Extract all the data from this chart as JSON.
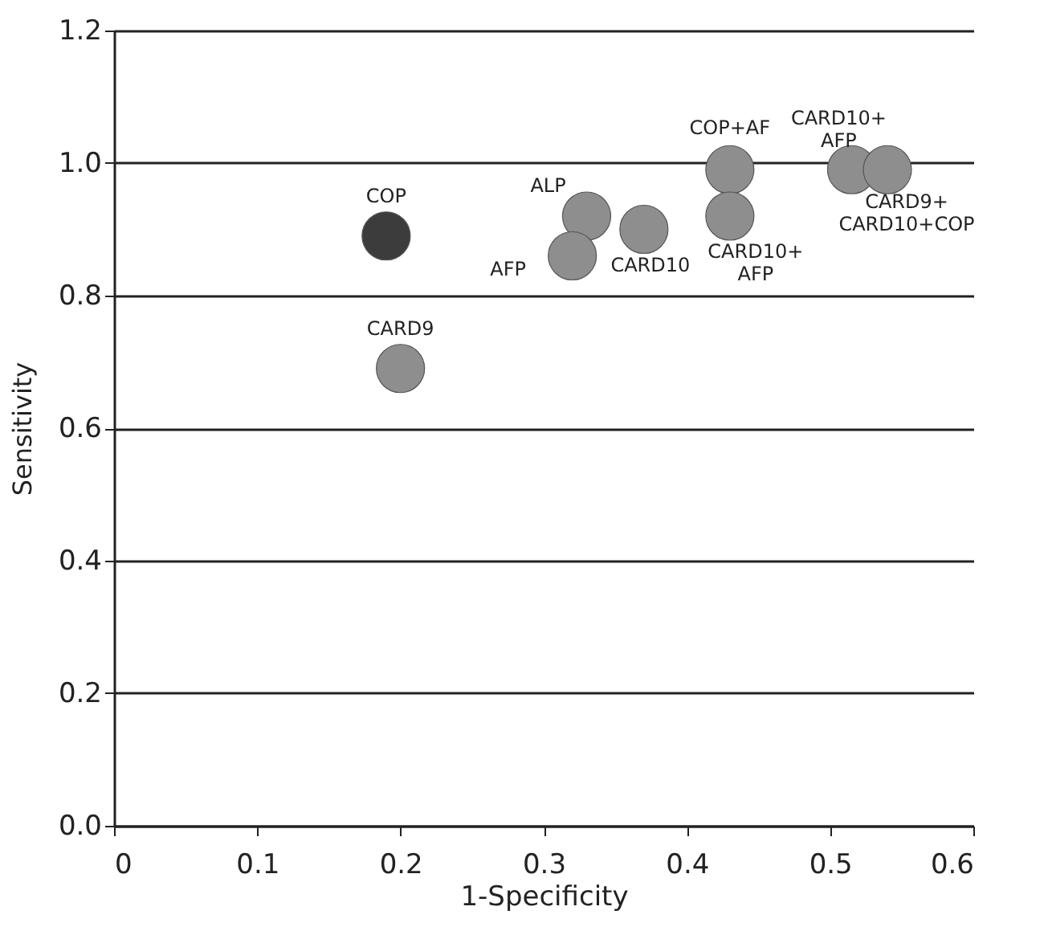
{
  "chart_data": {
    "type": "scatter",
    "xlabel": "1-Specificity",
    "ylabel": "Sensitivity",
    "xlim": [
      0,
      0.6
    ],
    "xticks": [
      0,
      0.1,
      0.2,
      0.3,
      0.4,
      0.5,
      0.6
    ],
    "ylim": [
      0,
      1.2
    ],
    "yticks": [
      {
        "value": 0,
        "label": "0.0"
      },
      0.2,
      0.4,
      0.6,
      0.8,
      {
        "value": 1,
        "label": "1.0"
      },
      1.2
    ],
    "grid": "y",
    "legend": false,
    "marker": "circle",
    "series": [
      {
        "name": "COP",
        "color": "#3c3c3c",
        "x": [
          0.19
        ],
        "values": [
          0.89
        ]
      },
      {
        "name": "CARD9",
        "color": "#8e8e8e",
        "x": [
          0.2
        ],
        "values": [
          0.69
        ]
      },
      {
        "name": "ALP",
        "color": "#8e8e8e",
        "x": [
          0.33
        ],
        "values": [
          0.92
        ]
      },
      {
        "name": "AFP",
        "color": "#8e8e8e",
        "x": [
          0.32
        ],
        "values": [
          0.86
        ]
      },
      {
        "name": "CARD10",
        "color": "#8e8e8e",
        "x": [
          0.37
        ],
        "values": [
          0.9
        ]
      },
      {
        "name": "COP+AF",
        "color": "#8e8e8e",
        "x": [
          0.43
        ],
        "values": [
          0.99
        ]
      },
      {
        "name": "CARD10+ AFP",
        "color": "#8e8e8e",
        "x": [
          0.43
        ],
        "values": [
          0.92
        ]
      },
      {
        "name": "CARD10+ AFP",
        "color": "#8e8e8e",
        "x": [
          0.515
        ],
        "values": [
          0.99
        ]
      },
      {
        "name": "CARD9+ CARD10+COP",
        "color": "#8e8e8e",
        "x": [
          0.54
        ],
        "values": [
          0.99
        ]
      }
    ]
  }
}
